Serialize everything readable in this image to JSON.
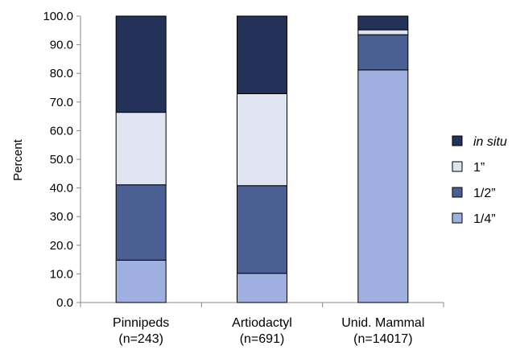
{
  "chart_data": {
    "type": "bar",
    "stacked": true,
    "ylabel": "Percent",
    "ylim": [
      0,
      100
    ],
    "y_ticks": [
      "0.0",
      "10.0",
      "20.0",
      "30.0",
      "40.0",
      "50.0",
      "60.0",
      "70.0",
      "80.0",
      "90.0",
      "100.0"
    ],
    "categories": [
      {
        "name": "Pinnipeds",
        "n": "(n=243)"
      },
      {
        "name": "Artiodactyl",
        "n": "(n=691)"
      },
      {
        "name": "Unid. Mammal",
        "n": "(n=14017)"
      }
    ],
    "series": [
      {
        "name": "1/4”",
        "color": "#9fb0e0",
        "values": [
          14.8,
          10.2,
          81.2
        ]
      },
      {
        "name": "1/2”",
        "color": "#4a5f94",
        "values": [
          26.3,
          30.6,
          12.3
        ]
      },
      {
        "name": "1”",
        "color": "#dfe4f2",
        "values": [
          25.3,
          32.1,
          1.7
        ]
      },
      {
        "name": "in situ",
        "color": "#243259",
        "values": [
          33.6,
          27.1,
          4.8
        ]
      }
    ],
    "legend_order": [
      "in situ",
      "1”",
      "1/2”",
      "1/4”"
    ],
    "legend_italic": [
      "in situ"
    ],
    "legend_position": "right",
    "grid": false
  }
}
